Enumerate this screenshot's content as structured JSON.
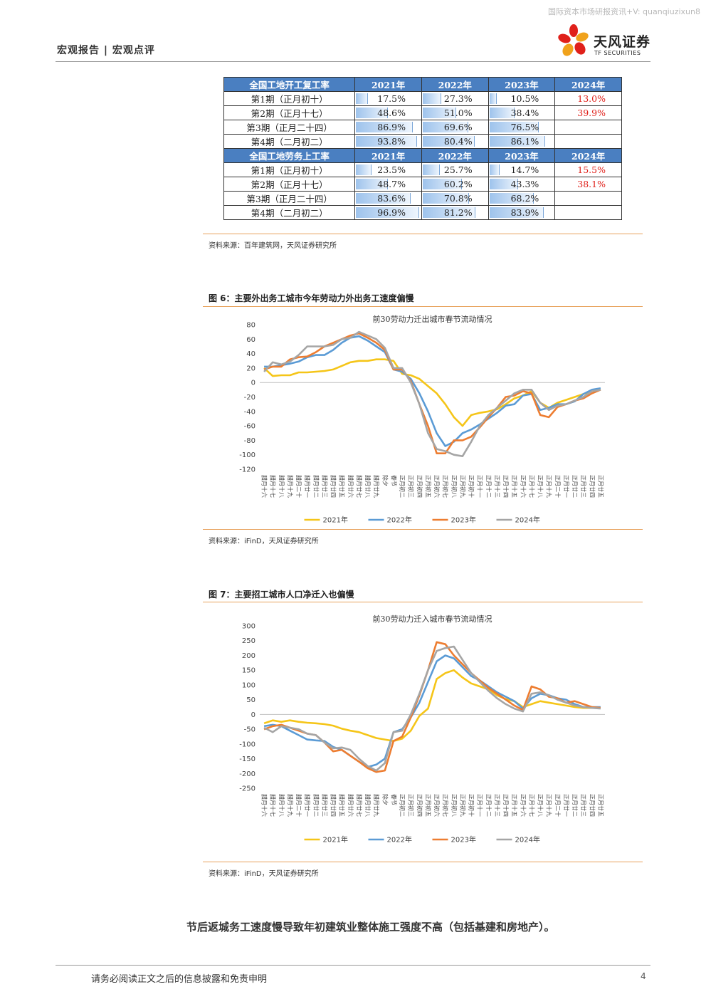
{
  "watermark": "国际资本市场研报资讯+V: quanqiuzixun8",
  "header": {
    "category": "宏观报告 | 宏观点评"
  },
  "logo": {
    "name": "天风证券",
    "sub": "TF SECURITIES"
  },
  "table": {
    "sections": [
      {
        "header": [
          "全国工地开工复工率",
          "2021年",
          "2022年",
          "2023年",
          "2024年"
        ],
        "rows": [
          {
            "label": "第1期（正月初十）",
            "values": [
              "17.5%",
              "27.3%",
              "10.5%",
              "13.0%"
            ],
            "levels": [
              0.175,
              0.273,
              0.105,
              null
            ]
          },
          {
            "label": "第2期（正月十七）",
            "values": [
              "48.6%",
              "51.0%",
              "38.4%",
              "39.9%"
            ],
            "levels": [
              0.486,
              0.51,
              0.384,
              null
            ]
          },
          {
            "label": "第3期（正月二十四）",
            "values": [
              "86.9%",
              "69.6%",
              "76.5%",
              ""
            ],
            "levels": [
              0.869,
              0.696,
              0.765,
              null
            ]
          },
          {
            "label": "第4期（二月初二）",
            "values": [
              "93.8%",
              "80.4%",
              "86.1%",
              ""
            ],
            "levels": [
              0.938,
              0.804,
              0.861,
              null
            ]
          }
        ]
      },
      {
        "header": [
          "全国工地劳务上工率",
          "2021年",
          "2022年",
          "2023年",
          "2024年"
        ],
        "rows": [
          {
            "label": "第1期（正月初十）",
            "values": [
              "23.5%",
              "25.7%",
              "14.7%",
              "15.5%"
            ],
            "levels": [
              0.235,
              0.257,
              0.147,
              null
            ]
          },
          {
            "label": "第2期（正月十七）",
            "values": [
              "48.7%",
              "60.2%",
              "43.3%",
              "38.1%"
            ],
            "levels": [
              0.487,
              0.602,
              0.433,
              null
            ]
          },
          {
            "label": "第3期（正月二十四）",
            "values": [
              "83.6%",
              "70.8%",
              "68.2%",
              ""
            ],
            "levels": [
              0.836,
              0.708,
              0.682,
              null
            ]
          },
          {
            "label": "第4期（二月初二）",
            "values": [
              "96.9%",
              "81.2%",
              "83.9%",
              ""
            ],
            "levels": [
              0.969,
              0.812,
              0.839,
              null
            ]
          }
        ]
      }
    ],
    "highlight_color": "#e0201a",
    "header_color": "#4a7fc1",
    "source": "资料来源：百年建筑网，天风证券研究所"
  },
  "fig6": {
    "title": "图 6：主要外出务工城市今年劳动力外出务工速度偏慢",
    "source": "资料来源：iFinD，天风证券研究所"
  },
  "fig7": {
    "title": "图 7：主要招工城市人口净迁入也偏慢",
    "source": "资料来源：iFinD，天风证券研究所"
  },
  "chart_data": [
    {
      "type": "line",
      "title": "前30劳动力迁出城市春节流动情况",
      "ylim": [
        -120,
        80
      ],
      "yticks": [
        80,
        60,
        40,
        20,
        0,
        -20,
        -40,
        -60,
        -80,
        -100,
        -120
      ],
      "categories": [
        "腊月十六",
        "腊月十七",
        "腊月十八",
        "腊月十九",
        "腊月二十",
        "腊月廿一",
        "腊月廿二",
        "腊月廿三",
        "腊月廿四",
        "腊月廿五",
        "腊月廿六",
        "腊月廿七",
        "腊月廿八",
        "腊月廿九",
        "除夕",
        "春节",
        "正月初二",
        "正月初三",
        "正月初四",
        "正月初五",
        "正月初六",
        "正月初七",
        "正月初八",
        "正月初九",
        "正月初十",
        "正月十一",
        "正月十二",
        "正月十三",
        "正月十四",
        "正月十五",
        "正月十六",
        "正月十七",
        "正月十八",
        "正月十九",
        "正月二十",
        "正月廿一",
        "正月廿二",
        "正月廿三",
        "正月廿四",
        "正月廿五"
      ],
      "legend": "bottom",
      "series": [
        {
          "name": "2021年",
          "color": "#f5c518",
          "values": [
            20,
            9,
            10,
            10,
            14,
            14,
            15,
            16,
            18,
            23,
            28,
            30,
            30,
            32,
            32,
            30,
            12,
            10,
            5,
            -5,
            -15,
            -30,
            -48,
            -60,
            -45,
            -42,
            -40,
            -37,
            -30,
            -22,
            -18,
            -12,
            -28,
            -35,
            -28,
            -24,
            -20,
            -16,
            -12,
            -10
          ]
        },
        {
          "name": "2022年",
          "color": "#5b9bd5",
          "values": [
            22,
            22,
            24,
            26,
            29,
            35,
            38,
            38,
            45,
            55,
            62,
            64,
            58,
            50,
            42,
            18,
            15,
            5,
            -15,
            -40,
            -70,
            -88,
            -82,
            -70,
            -65,
            -58,
            -50,
            -42,
            -32,
            -30,
            -18,
            -16,
            -38,
            -35,
            -30,
            -30,
            -26,
            -16,
            -10,
            -8
          ]
        },
        {
          "name": "2023年",
          "color": "#ed7d31",
          "values": [
            18,
            22,
            22,
            32,
            35,
            36,
            42,
            50,
            55,
            60,
            65,
            68,
            62,
            55,
            45,
            18,
            18,
            2,
            -30,
            -60,
            -98,
            -98,
            -80,
            -80,
            -75,
            -62,
            -48,
            -35,
            -20,
            -18,
            -12,
            -15,
            -45,
            -48,
            -34,
            -30,
            -25,
            -22,
            -15,
            -10
          ]
        },
        {
          "name": "2024年",
          "color": "#a5a5a5",
          "values": [
            15,
            28,
            25,
            29,
            38,
            50,
            50,
            50,
            52,
            60,
            62,
            70,
            65,
            60,
            48,
            20,
            20,
            0,
            -30,
            -70,
            -92,
            -95,
            -100,
            -102,
            -82,
            -60,
            -45,
            -35,
            -25,
            -15,
            -10,
            -10,
            -28,
            -38,
            -32,
            -30,
            -25,
            -20,
            -12,
            -10
          ]
        }
      ]
    },
    {
      "type": "line",
      "title": "前30劳动力迁入城市春节流动情况",
      "ylim": [
        -250,
        300
      ],
      "yticks": [
        300,
        250,
        200,
        150,
        100,
        50,
        0,
        -50,
        -100,
        -150,
        -200,
        -250
      ],
      "categories": [
        "腊月十六",
        "腊月十七",
        "腊月十八",
        "腊月十九",
        "腊月二十",
        "腊月廿一",
        "腊月廿二",
        "腊月廿三",
        "腊月廿四",
        "腊月廿五",
        "腊月廿六",
        "腊月廿七",
        "腊月廿八",
        "腊月廿九",
        "除夕",
        "春节",
        "正月初二",
        "正月初三",
        "正月初四",
        "正月初五",
        "正月初六",
        "正月初七",
        "正月初八",
        "正月初九",
        "正月初十",
        "正月十一",
        "正月十二",
        "正月十三",
        "正月十四",
        "正月十五",
        "正月十六",
        "正月十七",
        "正月十八",
        "正月十九",
        "正月二十",
        "正月廿一",
        "正月廿二",
        "正月廿三",
        "正月廿四",
        "正月廿五"
      ],
      "legend": "bottom",
      "series": [
        {
          "name": "2021年",
          "color": "#f5c518",
          "values": [
            -30,
            -20,
            -25,
            -20,
            -25,
            -28,
            -30,
            -33,
            -38,
            -48,
            -55,
            -60,
            -70,
            -80,
            -85,
            -90,
            -82,
            -55,
            -5,
            20,
            120,
            140,
            150,
            125,
            105,
            95,
            85,
            65,
            52,
            45,
            25,
            35,
            45,
            40,
            35,
            30,
            25,
            22,
            22,
            22
          ]
        },
        {
          "name": "2022年",
          "color": "#5b9bd5",
          "values": [
            -40,
            -35,
            -40,
            -55,
            -70,
            -85,
            -88,
            -90,
            -110,
            -120,
            -140,
            -160,
            -178,
            -170,
            -150,
            -60,
            -50,
            -10,
            40,
            110,
            180,
            200,
            190,
            160,
            130,
            115,
            95,
            75,
            60,
            45,
            20,
            55,
            70,
            65,
            55,
            50,
            35,
            25,
            25,
            25
          ]
        },
        {
          "name": "2023年",
          "color": "#ed7d31",
          "values": [
            -50,
            -40,
            -35,
            -45,
            -55,
            -65,
            -70,
            -95,
            -125,
            -120,
            -140,
            -160,
            -182,
            -195,
            -190,
            -90,
            -75,
            -10,
            65,
            150,
            245,
            238,
            200,
            170,
            140,
            115,
            90,
            70,
            50,
            30,
            15,
            95,
            85,
            60,
            55,
            40,
            45,
            35,
            25,
            22
          ]
        },
        {
          "name": "2024年",
          "color": "#a5a5a5",
          "values": [
            -45,
            -60,
            -40,
            -45,
            -50,
            -65,
            -70,
            -95,
            -115,
            -112,
            -120,
            -150,
            -175,
            -190,
            -165,
            -60,
            -55,
            0,
            70,
            150,
            215,
            225,
            230,
            185,
            140,
            110,
            80,
            55,
            35,
            20,
            10,
            70,
            75,
            65,
            50,
            40,
            30,
            25,
            22,
            20
          ]
        }
      ]
    }
  ],
  "body_text": "节后返城务工速度慢导致年初建筑业整体施工强度不高（包括基建和房地产）。",
  "footer": {
    "disclaimer": "请务必阅读正文之后的信息披露和免责申明",
    "page": "4"
  }
}
